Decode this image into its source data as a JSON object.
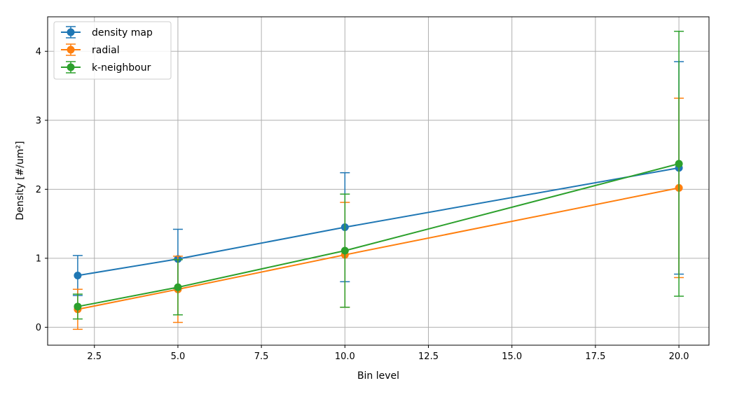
{
  "chart_data": {
    "type": "line",
    "error_bars": true,
    "xlabel": "Bin level",
    "ylabel": "Density [#/um²]",
    "xlim": [
      1.1,
      20.9
    ],
    "ylim": [
      -0.26,
      4.5
    ],
    "xticks": [
      2.5,
      5.0,
      7.5,
      10.0,
      12.5,
      15.0,
      17.5,
      20.0
    ],
    "xtick_labels": [
      "2.5",
      "5.0",
      "7.5",
      "10.0",
      "12.5",
      "15.0",
      "17.5",
      "20.0"
    ],
    "yticks": [
      0,
      1,
      2,
      3,
      4
    ],
    "ytick_labels": [
      "0",
      "1",
      "2",
      "3",
      "4"
    ],
    "grid": true,
    "legend_position": "top-left",
    "x": [
      2,
      5,
      10,
      20
    ],
    "series": [
      {
        "name": "density map",
        "color": "#1f77b4",
        "values": [
          0.75,
          0.99,
          1.45,
          2.31
        ],
        "errors": [
          0.29,
          0.43,
          0.79,
          1.54
        ]
      },
      {
        "name": "radial",
        "color": "#ff7f0e",
        "values": [
          0.26,
          0.55,
          1.05,
          2.02
        ],
        "errors": [
          0.29,
          0.48,
          0.76,
          1.3
        ]
      },
      {
        "name": "k-neighbour",
        "color": "#2ca02c",
        "values": [
          0.3,
          0.58,
          1.11,
          2.37
        ],
        "errors": [
          0.18,
          0.4,
          0.82,
          1.92
        ]
      }
    ]
  }
}
